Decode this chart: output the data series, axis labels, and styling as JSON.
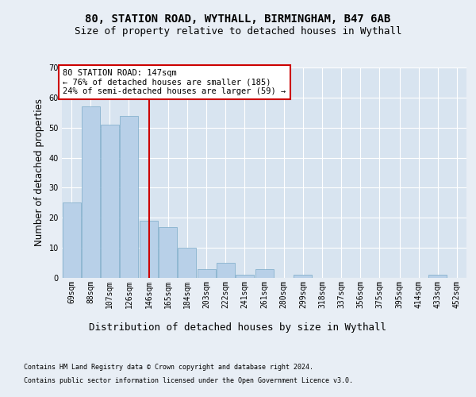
{
  "title1": "80, STATION ROAD, WYTHALL, BIRMINGHAM, B47 6AB",
  "title2": "Size of property relative to detached houses in Wythall",
  "xlabel": "Distribution of detached houses by size in Wythall",
  "ylabel": "Number of detached properties",
  "footer1": "Contains HM Land Registry data © Crown copyright and database right 2024.",
  "footer2": "Contains public sector information licensed under the Open Government Licence v3.0.",
  "bins": [
    69,
    88,
    107,
    126,
    146,
    165,
    184,
    203,
    222,
    241,
    261,
    280,
    299,
    318,
    337,
    356,
    375,
    395,
    414,
    433,
    452
  ],
  "bar_labels": [
    "69sqm",
    "88sqm",
    "107sqm",
    "126sqm",
    "146sqm",
    "165sqm",
    "184sqm",
    "203sqm",
    "222sqm",
    "241sqm",
    "261sqm",
    "280sqm",
    "299sqm",
    "318sqm",
    "337sqm",
    "356sqm",
    "375sqm",
    "395sqm",
    "414sqm",
    "433sqm",
    "452sqm"
  ],
  "values": [
    25,
    57,
    51,
    54,
    19,
    17,
    10,
    3,
    5,
    1,
    3,
    0,
    1,
    0,
    0,
    0,
    0,
    0,
    0,
    1,
    0
  ],
  "bar_color": "#b8d0e8",
  "bar_edge_color": "#7aaac8",
  "vline_x": 146,
  "vline_color": "#cc0000",
  "annotation_text": "80 STATION ROAD: 147sqm\n← 76% of detached houses are smaller (185)\n24% of semi-detached houses are larger (59) →",
  "annotation_box_facecolor": "#ffffff",
  "annotation_box_edgecolor": "#cc0000",
  "ylim": [
    0,
    70
  ],
  "yticks": [
    0,
    10,
    20,
    30,
    40,
    50,
    60,
    70
  ],
  "background_color": "#e8eef5",
  "plot_bg_color": "#d8e4f0",
  "grid_color": "#ffffff",
  "title_fontsize": 10,
  "subtitle_fontsize": 9,
  "tick_fontsize": 7,
  "ylabel_fontsize": 8.5,
  "footer_fontsize": 6,
  "annotation_fontsize": 7.5
}
